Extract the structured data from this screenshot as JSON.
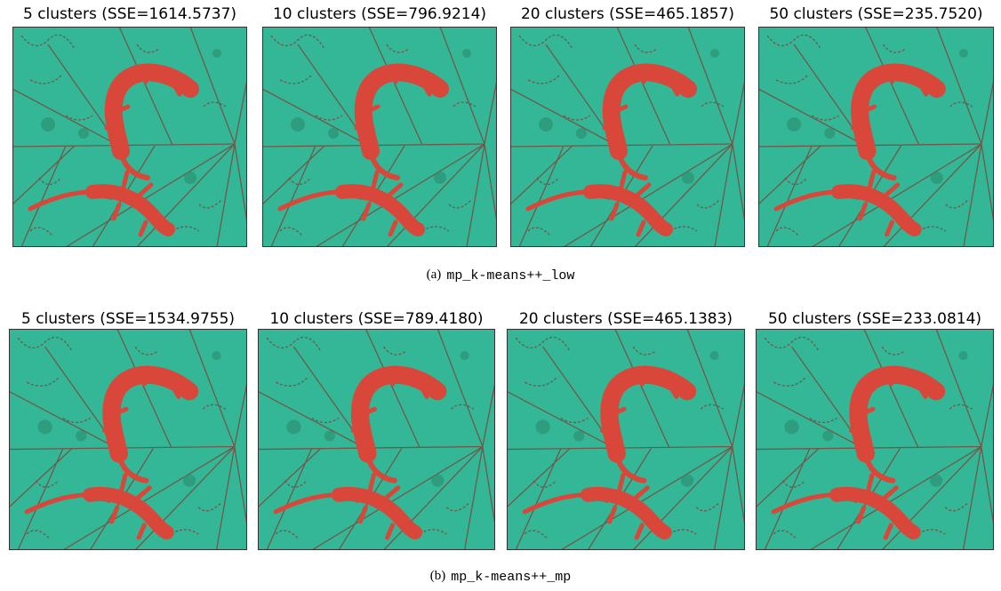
{
  "figures": [
    {
      "label": "(a)",
      "method": "mp_k-means++_low",
      "panels": [
        {
          "title": "5 clusters (SSE=1614.5737)"
        },
        {
          "title": "10 clusters (SSE=796.9214)"
        },
        {
          "title": "20 clusters (SSE=465.1857)"
        },
        {
          "title": "50 clusters (SSE=235.7520)"
        }
      ]
    },
    {
      "label": "(b)",
      "method": "mp_k-means++_mp",
      "panels": [
        {
          "title": "5 clusters (SSE=1534.9755)"
        },
        {
          "title": "10 clusters (SSE=789.4180)"
        },
        {
          "title": "20 clusters (SSE=465.1383)"
        },
        {
          "title": "50 clusters (SSE=233.0814)"
        }
      ]
    }
  ]
}
